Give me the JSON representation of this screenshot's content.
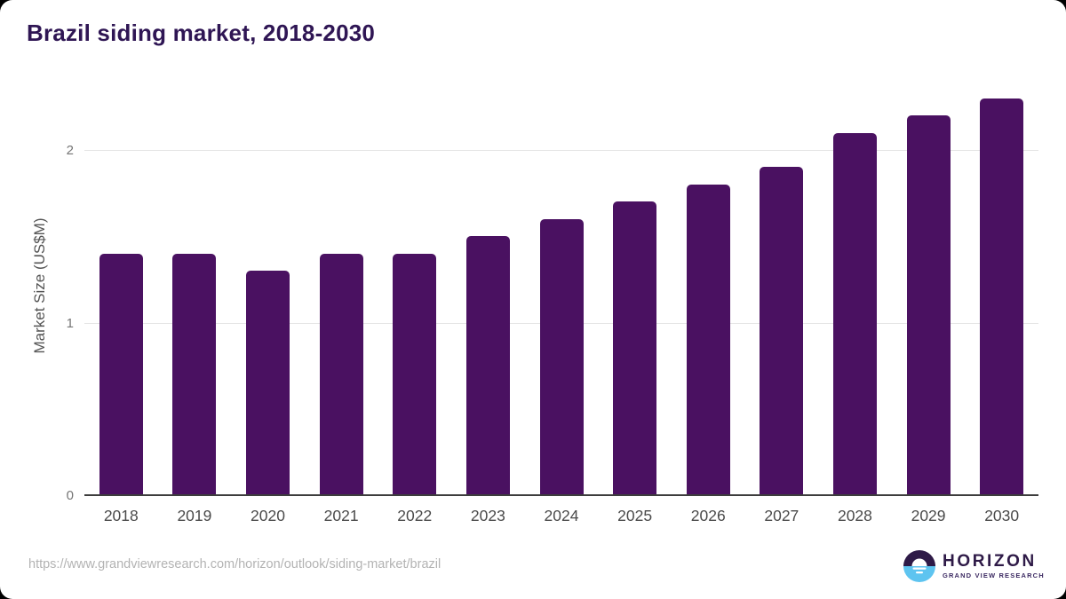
{
  "title": "Brazil siding market, 2018-2030",
  "footer": {
    "url": "https://www.grandviewresearch.com/horizon/outlook/siding-market/brazil"
  },
  "logo": {
    "name": "HORIZON",
    "subtext": "GRAND VIEW RESEARCH",
    "icon": "horizon-sun-over-water-icon",
    "colors": {
      "dark": "#2e1a47",
      "blue": "#5ec4f0"
    }
  },
  "chart_data": {
    "type": "bar",
    "title": "Brazil siding market, 2018-2030",
    "categories": [
      "2018",
      "2019",
      "2020",
      "2021",
      "2022",
      "2023",
      "2024",
      "2025",
      "2026",
      "2027",
      "2028",
      "2029",
      "2030"
    ],
    "values": [
      1.4,
      1.4,
      1.3,
      1.4,
      1.4,
      1.5,
      1.6,
      1.7,
      1.8,
      1.9,
      2.1,
      2.2,
      2.3
    ],
    "xlabel": "",
    "ylabel": "Market Size (US$M)",
    "yticks": [
      0,
      1,
      2
    ],
    "ylim": [
      0,
      2.4
    ],
    "grid": "horizontal",
    "legend": "none",
    "bar_color": "#4a1161"
  }
}
